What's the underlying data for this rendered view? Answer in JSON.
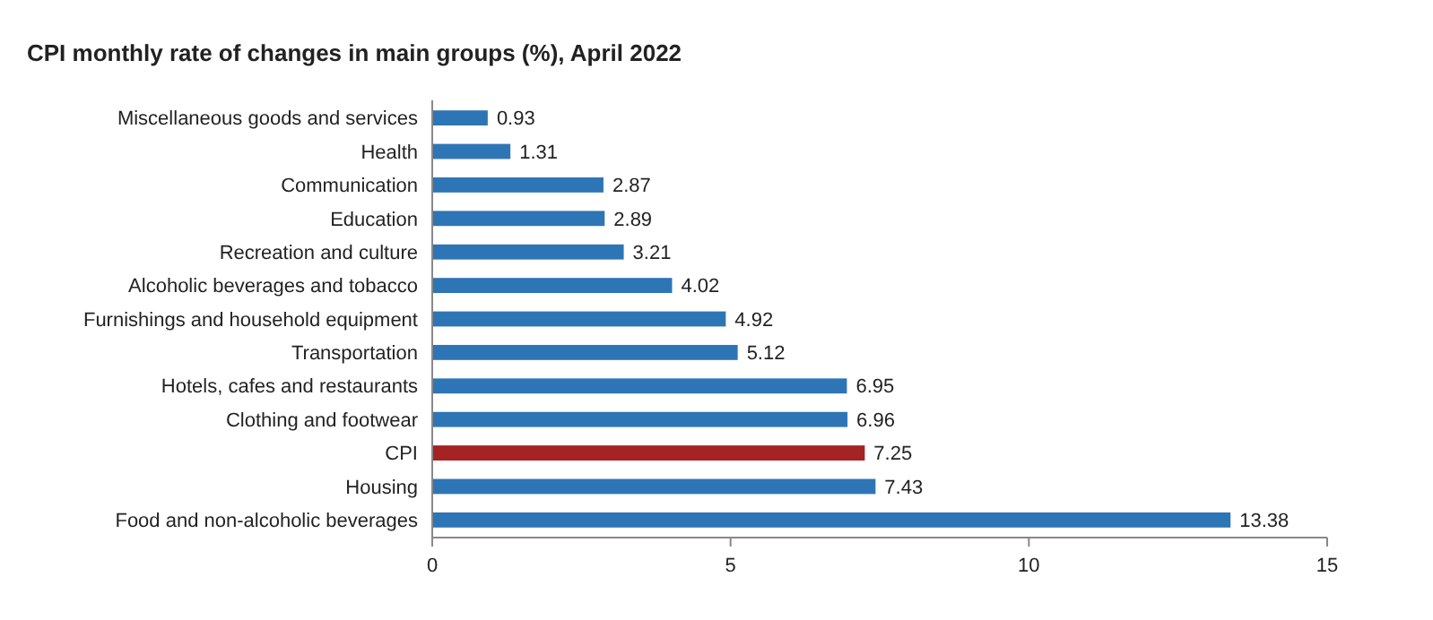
{
  "chart_data": {
    "type": "bar",
    "orientation": "horizontal",
    "title": "CPI monthly rate of changes in main groups (%), April 2022",
    "categories": [
      "Miscellaneous goods and services",
      "Health",
      "Communication",
      "Education",
      "Recreation and culture",
      "Alcoholic beverages and tobacco",
      "Furnishings and household equipment",
      "Transportation",
      "Hotels, cafes and restaurants",
      "Clothing and footwear",
      "CPI",
      "Housing",
      "Food and non-alcoholic beverages"
    ],
    "values": [
      0.93,
      1.31,
      2.87,
      2.89,
      3.21,
      4.02,
      4.92,
      5.12,
      6.95,
      6.96,
      7.25,
      7.43,
      13.38
    ],
    "colors": [
      "#2e75b6",
      "#2e75b6",
      "#2e75b6",
      "#2e75b6",
      "#2e75b6",
      "#2e75b6",
      "#2e75b6",
      "#2e75b6",
      "#2e75b6",
      "#2e75b6",
      "#a52323",
      "#2e75b6",
      "#2e75b6"
    ],
    "xlim": [
      0,
      15
    ],
    "xticks": [
      0,
      5,
      10,
      15
    ],
    "data_labels": true,
    "grid": false
  }
}
